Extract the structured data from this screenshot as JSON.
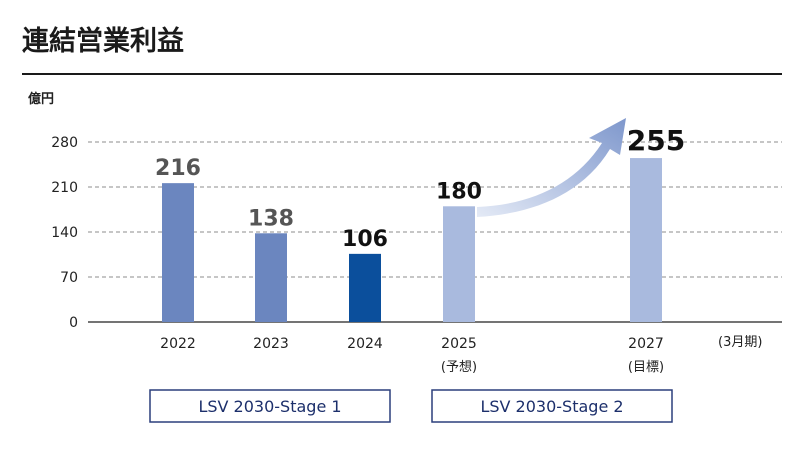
{
  "chart_data": {
    "type": "bar",
    "title": "連結営業利益",
    "ylabel": "億円",
    "ylim": [
      0,
      280
    ],
    "yticks": [
      "0",
      "70",
      "140",
      "210",
      "280"
    ],
    "grid": true,
    "x_unit": "(3月期)",
    "categories": [
      "2022",
      "2023",
      "2024",
      "2025",
      "2027"
    ],
    "category_notes": [
      "",
      "",
      "",
      "(予想)",
      "(目標)"
    ],
    "values": [
      216,
      138,
      106,
      180,
      255
    ],
    "value_labels": [
      "216",
      "138",
      "106",
      "180",
      "255"
    ],
    "colors": [
      "#6b86bf",
      "#6b86bf",
      "#0b4f9c",
      "#a9bade",
      "#a9bade"
    ],
    "label_colors": [
      "#555555",
      "#555555",
      "#111111",
      "#111111",
      "#111111"
    ],
    "annotations": {
      "arrow": {
        "from": "2025",
        "to": "2027"
      }
    },
    "stages": [
      {
        "label": "LSV 2030-Stage 1",
        "categories": [
          "2022",
          "2023",
          "2024"
        ]
      },
      {
        "label": "LSV 2030-Stage 2",
        "categories": [
          "2025",
          "2027"
        ]
      }
    ]
  }
}
